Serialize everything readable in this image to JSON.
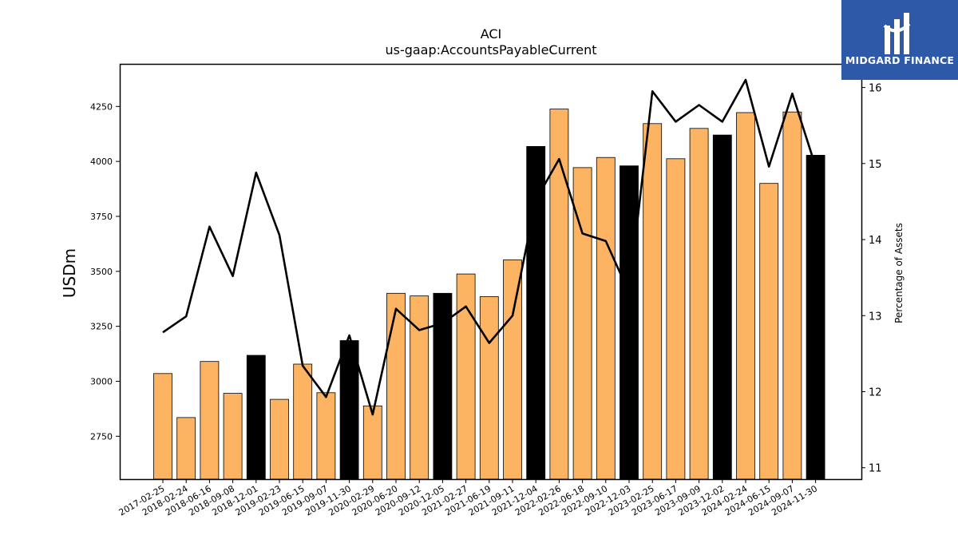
{
  "brand": {
    "name": "MIDGARD FINANCE",
    "color": "#2e58a8",
    "icon": "midgard-logo-icon"
  },
  "chart_data": {
    "type": "bar",
    "title": "ACI",
    "subtitle": "us-gaap:AccountsPayableCurrent",
    "ylabel": "USDm",
    "y2label": "Percentage of Assets",
    "ylim": [
      2555,
      4440
    ],
    "y2lim": [
      10.85,
      16.3
    ],
    "yticks": [
      2750,
      3000,
      3250,
      3500,
      3750,
      4000,
      4250
    ],
    "y2ticks": [
      11,
      12,
      13,
      14,
      15,
      16
    ],
    "colors": {
      "bar": "#fdb462",
      "bar_highlight": "#000000",
      "line": "#000000"
    },
    "categories": [
      "2017-02-25",
      "2018-02-24",
      "2018-06-16",
      "2018-09-08",
      "2018-12-01",
      "2019-02-23",
      "2019-06-15",
      "2019-09-07",
      "2019-11-30",
      "2020-02-29",
      "2020-06-20",
      "2020-09-12",
      "2020-12-05",
      "2021-02-27",
      "2021-06-19",
      "2021-09-11",
      "2021-12-04",
      "2022-02-26",
      "2022-06-18",
      "2022-09-10",
      "2022-12-03",
      "2023-02-25",
      "2023-06-17",
      "2023-09-09",
      "2023-12-02",
      "2024-02-24",
      "2024-06-15",
      "2024-09-07",
      "2024-11-30"
    ],
    "series": [
      {
        "type": "bar",
        "values": [
          3035,
          2835,
          3090,
          2945,
          3118,
          2918,
          3078,
          2948,
          3185,
          2888,
          3400,
          3388,
          3400,
          3488,
          3385,
          3552,
          4068,
          4238,
          3972,
          4018,
          3980,
          4172,
          4012,
          4150,
          4120,
          4222,
          3900,
          4225,
          4028
        ],
        "highlight": [
          false,
          false,
          false,
          false,
          true,
          false,
          false,
          false,
          true,
          false,
          false,
          false,
          true,
          false,
          false,
          false,
          true,
          false,
          false,
          false,
          true,
          false,
          false,
          false,
          true,
          false,
          false,
          false,
          true
        ]
      },
      {
        "type": "line",
        "axis": "right",
        "values": [
          12.78,
          12.99,
          14.17,
          13.52,
          14.88,
          14.06,
          12.34,
          11.93,
          12.74,
          11.7,
          13.09,
          12.81,
          12.9,
          13.12,
          12.64,
          13.0,
          14.52,
          15.06,
          14.08,
          13.98,
          13.3,
          15.95,
          15.55,
          15.77,
          15.55,
          16.1,
          14.96,
          15.92,
          14.96
        ]
      }
    ],
    "grid": false,
    "legend": "none"
  }
}
